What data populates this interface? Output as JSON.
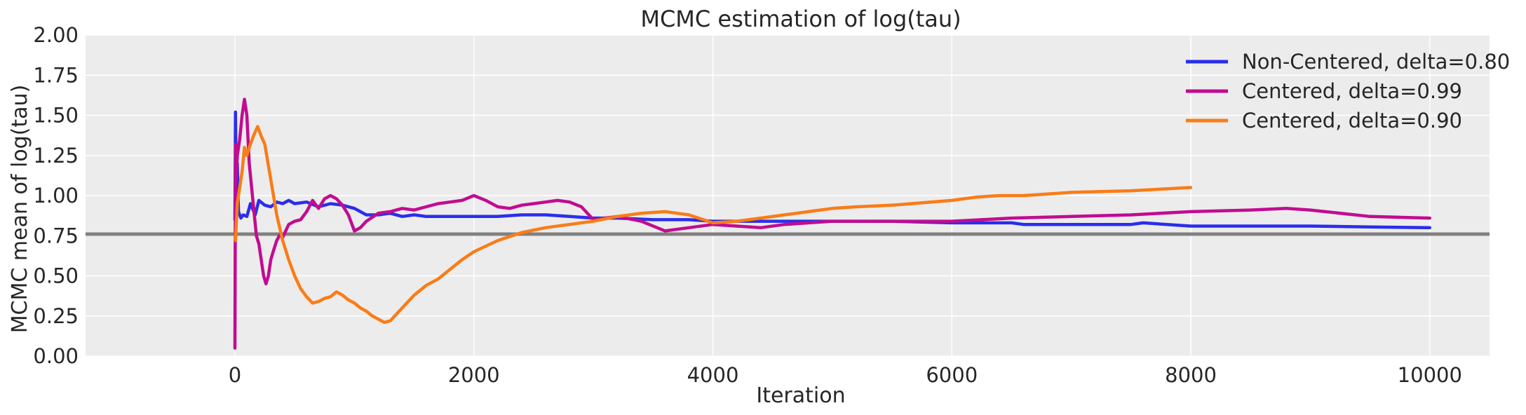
{
  "chart_data": {
    "type": "line",
    "title": "MCMC estimation of log(tau)",
    "xlabel": "Iteration",
    "ylabel": "MCMC mean of log(tau)",
    "xlim": [
      -1250,
      10500
    ],
    "ylim": [
      0,
      2.0
    ],
    "xticks": [
      0,
      2000,
      4000,
      6000,
      8000,
      10000
    ],
    "xtick_labels": [
      "0",
      "2000",
      "4000",
      "6000",
      "8000",
      "10000"
    ],
    "yticks": [
      0,
      0.25,
      0.5,
      0.75,
      1.0,
      1.25,
      1.5,
      1.75,
      2.0
    ],
    "ytick_labels": [
      "0.00",
      "0.25",
      "0.50",
      "0.75",
      "1.00",
      "1.25",
      "1.50",
      "1.75",
      "2.00"
    ],
    "grid": true,
    "background": "#ececec",
    "legend_position": "top-right",
    "reference_line": {
      "y": 0.76,
      "color": "#808080"
    },
    "series": [
      {
        "name": "Non-Centered, delta=0.80",
        "color": "#2a2eec",
        "x": [
          0,
          5,
          10,
          20,
          30,
          50,
          70,
          100,
          130,
          170,
          200,
          250,
          300,
          350,
          400,
          450,
          500,
          600,
          700,
          800,
          900,
          1000,
          1100,
          1200,
          1300,
          1400,
          1500,
          1600,
          1800,
          2000,
          2200,
          2400,
          2600,
          2800,
          3000,
          3200,
          3500,
          3800,
          4000,
          4200,
          4500,
          5000,
          5500,
          6000,
          6500,
          6600,
          7000,
          7500,
          7600,
          8000,
          8500,
          9000,
          9500,
          10000
        ],
        "y": [
          0.85,
          1.52,
          1.1,
          1.2,
          0.9,
          0.86,
          0.88,
          0.87,
          0.95,
          0.88,
          0.97,
          0.94,
          0.93,
          0.96,
          0.95,
          0.97,
          0.95,
          0.96,
          0.93,
          0.95,
          0.94,
          0.92,
          0.88,
          0.88,
          0.89,
          0.87,
          0.88,
          0.87,
          0.87,
          0.87,
          0.87,
          0.88,
          0.88,
          0.87,
          0.86,
          0.86,
          0.85,
          0.85,
          0.84,
          0.84,
          0.84,
          0.84,
          0.84,
          0.83,
          0.83,
          0.82,
          0.82,
          0.82,
          0.83,
          0.81,
          0.81,
          0.81,
          0.805,
          0.8
        ]
      },
      {
        "name": "Centered, delta=0.99",
        "color": "#c10c90",
        "x": [
          0,
          5,
          10,
          20,
          40,
          60,
          80,
          100,
          120,
          140,
          160,
          180,
          200,
          220,
          240,
          260,
          280,
          300,
          320,
          350,
          380,
          400,
          450,
          500,
          550,
          600,
          650,
          700,
          750,
          800,
          850,
          900,
          950,
          1000,
          1050,
          1100,
          1200,
          1300,
          1400,
          1500,
          1600,
          1700,
          1800,
          1900,
          2000,
          2100,
          2200,
          2300,
          2400,
          2500,
          2600,
          2700,
          2800,
          2900,
          3000,
          3200,
          3400,
          3600,
          3800,
          4000,
          4200,
          4400,
          4600,
          4800,
          5000,
          5500,
          6000,
          6500,
          7000,
          7500,
          8000,
          8500,
          8800,
          9000,
          9500,
          10000
        ],
        "y": [
          0.05,
          1.32,
          1.1,
          1.25,
          1.35,
          1.5,
          1.6,
          1.5,
          1.2,
          1.05,
          0.9,
          0.75,
          0.7,
          0.6,
          0.5,
          0.45,
          0.5,
          0.6,
          0.65,
          0.72,
          0.76,
          0.74,
          0.82,
          0.84,
          0.85,
          0.9,
          0.97,
          0.92,
          0.98,
          1.0,
          0.98,
          0.94,
          0.88,
          0.78,
          0.8,
          0.84,
          0.89,
          0.9,
          0.92,
          0.91,
          0.93,
          0.95,
          0.96,
          0.97,
          1.0,
          0.97,
          0.93,
          0.92,
          0.94,
          0.95,
          0.96,
          0.97,
          0.96,
          0.93,
          0.85,
          0.87,
          0.84,
          0.78,
          0.8,
          0.82,
          0.81,
          0.8,
          0.82,
          0.83,
          0.84,
          0.84,
          0.84,
          0.86,
          0.87,
          0.88,
          0.9,
          0.91,
          0.92,
          0.91,
          0.87,
          0.86
        ]
      },
      {
        "name": "Centered, delta=0.90",
        "color": "#fa7c17",
        "x": [
          0,
          5,
          10,
          20,
          40,
          60,
          80,
          100,
          130,
          160,
          190,
          220,
          250,
          300,
          350,
          400,
          450,
          500,
          550,
          600,
          650,
          700,
          750,
          800,
          850,
          900,
          950,
          1000,
          1050,
          1100,
          1150,
          1200,
          1250,
          1300,
          1400,
          1500,
          1600,
          1700,
          1800,
          1900,
          2000,
          2200,
          2400,
          2600,
          2800,
          3000,
          3200,
          3400,
          3600,
          3700,
          3800,
          4000,
          4200,
          4400,
          4600,
          4800,
          5000,
          5200,
          5500,
          6000,
          6200,
          6400,
          6600,
          6800,
          7000,
          7500,
          8000
        ],
        "y": [
          0.75,
          0.72,
          0.8,
          0.95,
          1.05,
          1.15,
          1.3,
          1.25,
          1.32,
          1.38,
          1.43,
          1.37,
          1.32,
          1.1,
          0.88,
          0.72,
          0.6,
          0.5,
          0.42,
          0.37,
          0.33,
          0.34,
          0.36,
          0.37,
          0.4,
          0.38,
          0.35,
          0.33,
          0.3,
          0.28,
          0.25,
          0.23,
          0.21,
          0.22,
          0.3,
          0.38,
          0.44,
          0.48,
          0.54,
          0.6,
          0.65,
          0.72,
          0.77,
          0.8,
          0.82,
          0.84,
          0.87,
          0.89,
          0.9,
          0.89,
          0.88,
          0.83,
          0.84,
          0.86,
          0.88,
          0.9,
          0.92,
          0.93,
          0.94,
          0.97,
          0.99,
          1.0,
          1.0,
          1.01,
          1.02,
          1.03,
          1.05
        ]
      }
    ]
  }
}
